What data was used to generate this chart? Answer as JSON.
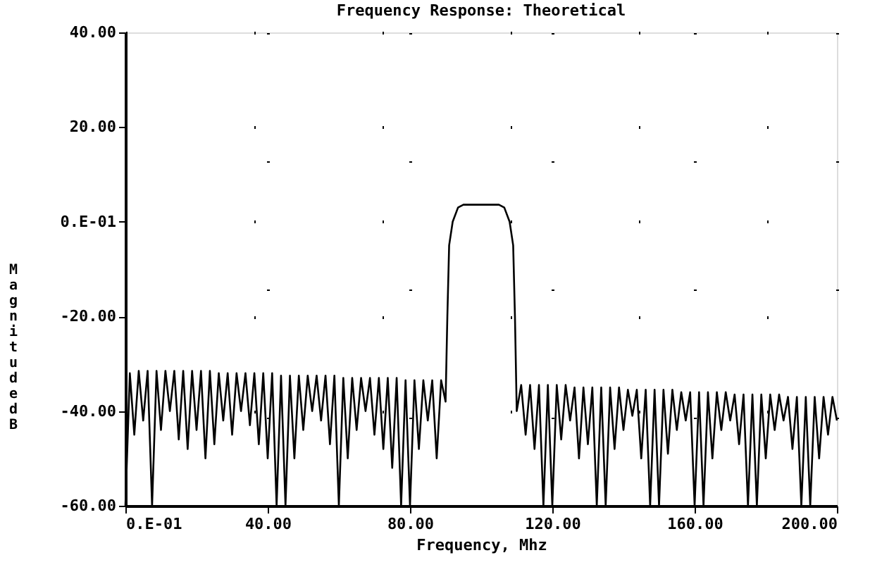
{
  "chart_data": {
    "type": "line",
    "title": "Frequency Response: Theoretical",
    "xlabel": "Frequency,  Mhz",
    "ylabel": "Magnitude dB",
    "xlim": [
      0,
      200
    ],
    "ylim": [
      -60,
      40
    ],
    "xticks": [
      {
        "value": 0,
        "label": "0.E-01"
      },
      {
        "value": 40,
        "label": "40.00"
      },
      {
        "value": 80,
        "label": "80.00"
      },
      {
        "value": 120,
        "label": "120.00"
      },
      {
        "value": 160,
        "label": "160.00"
      },
      {
        "value": 200,
        "label": "200.00"
      }
    ],
    "yticks": [
      {
        "value": -60,
        "label": "-60.00"
      },
      {
        "value": -40,
        "label": "-40.00"
      },
      {
        "value": -20,
        "label": "-20.00"
      },
      {
        "value": 0,
        "label": "0.E-01"
      },
      {
        "value": 20,
        "label": "20.00"
      },
      {
        "value": 40,
        "label": "40.00"
      }
    ],
    "grid": true,
    "line_style": "solid",
    "marker": "none",
    "series": [
      {
        "color": "#000000",
        "x": [
          0,
          1.25,
          2.5,
          3.75,
          5,
          6.25,
          7.5,
          8.75,
          10,
          11.25,
          12.5,
          13.75,
          15,
          16.25,
          17.5,
          18.75,
          20,
          21.25,
          22.5,
          23.75,
          25,
          26.25,
          27.5,
          28.75,
          30,
          31.25,
          32.5,
          33.75,
          35,
          36.25,
          37.5,
          38.75,
          40,
          41.25,
          42.5,
          43.75,
          45,
          46.25,
          47.5,
          48.75,
          50,
          51.25,
          52.5,
          53.75,
          55,
          56.25,
          57.5,
          58.75,
          60,
          61.25,
          62.5,
          63.75,
          65,
          66.25,
          67.5,
          68.75,
          70,
          71.25,
          72.5,
          73.75,
          75,
          76.25,
          77.5,
          78.75,
          80,
          81.25,
          82.5,
          83.75,
          85,
          86.25,
          87.5,
          88.75,
          90,
          90.5,
          91,
          92,
          93.5,
          95,
          105,
          106.5,
          108,
          109,
          109.5,
          110,
          111.25,
          112.5,
          113.75,
          115,
          116.25,
          117.5,
          118.75,
          120,
          121.25,
          122.5,
          123.75,
          125,
          126.25,
          127.5,
          128.75,
          130,
          131.25,
          132.5,
          133.75,
          135,
          136.25,
          137.5,
          138.75,
          140,
          141.25,
          142.5,
          143.75,
          145,
          146.25,
          147.5,
          148.75,
          150,
          151.25,
          152.5,
          153.75,
          155,
          156.25,
          157.5,
          158.75,
          160,
          161.25,
          162.5,
          163.75,
          165,
          166.25,
          167.5,
          168.75,
          170,
          171.25,
          172.5,
          173.75,
          175,
          176.25,
          177.5,
          178.75,
          180,
          181.25,
          182.5,
          183.75,
          185,
          186.25,
          187.5,
          188.75,
          190,
          191.25,
          192.5,
          193.75,
          195,
          196.25,
          197.5,
          198.75,
          200
        ],
        "values": [
          -60,
          -32,
          -45,
          -31.5,
          -42,
          -31.5,
          -60,
          -31.5,
          -44,
          -31.5,
          -40,
          -31.5,
          -46,
          -31.5,
          -48,
          -31.5,
          -44,
          -31.5,
          -50,
          -31.5,
          -47,
          -32,
          -42,
          -32,
          -45,
          -32,
          -40,
          -32,
          -43,
          -32,
          -47,
          -32,
          -50,
          -32,
          -60,
          -32.5,
          -60,
          -32.5,
          -50,
          -32.5,
          -44,
          -32.5,
          -40,
          -32.5,
          -42,
          -32.5,
          -47,
          -32.5,
          -60,
          -33,
          -50,
          -33,
          -44,
          -33,
          -40,
          -33,
          -45,
          -33,
          -48,
          -33,
          -52,
          -33,
          -60,
          -33.5,
          -60,
          -33.5,
          -48,
          -33.5,
          -42,
          -33.5,
          -50,
          -33.5,
          -38,
          -20,
          -5,
          0,
          3,
          3.6,
          3.6,
          3,
          0,
          -5,
          -20,
          -40,
          -34.5,
          -45,
          -34.5,
          -48,
          -34.5,
          -60,
          -34.5,
          -60,
          -34.5,
          -46,
          -34.5,
          -42,
          -35,
          -50,
          -35,
          -47,
          -35,
          -60,
          -35,
          -60,
          -35,
          -48,
          -35,
          -44,
          -35.5,
          -41,
          -35.5,
          -50,
          -35.5,
          -60,
          -35.5,
          -60,
          -35.5,
          -49,
          -35.5,
          -44,
          -36,
          -42,
          -36,
          -60,
          -36,
          -60,
          -36,
          -50,
          -36,
          -44,
          -36,
          -42,
          -36.5,
          -47,
          -36.5,
          -60,
          -36.5,
          -60,
          -36.5,
          -50,
          -36.5,
          -44,
          -36.5,
          -42,
          -37,
          -48,
          -37,
          -60,
          -37,
          -60,
          -37,
          -50,
          -37,
          -45,
          -37,
          -42
        ]
      }
    ]
  }
}
